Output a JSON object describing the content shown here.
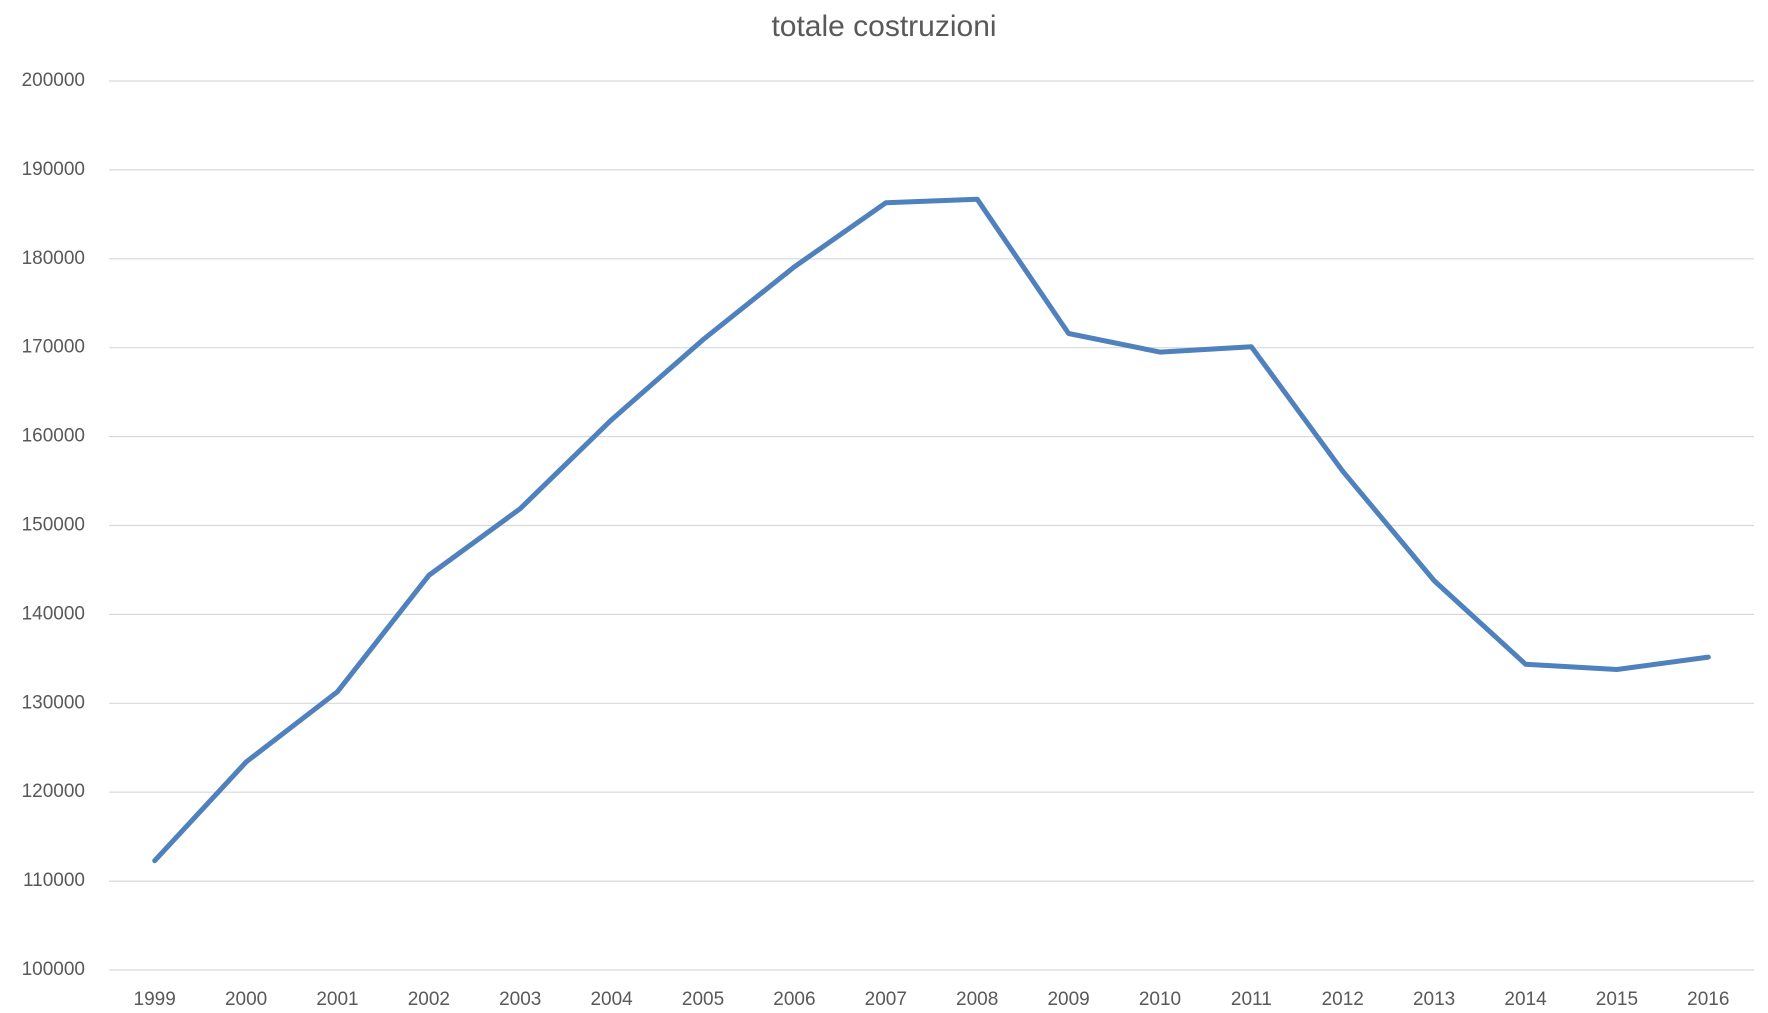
{
  "chart_data": {
    "type": "line",
    "title": "totale costruzioni",
    "categories": [
      "1999",
      "2000",
      "2001",
      "2002",
      "2003",
      "2004",
      "2005",
      "2006",
      "2007",
      "2008",
      "2009",
      "2010",
      "2011",
      "2012",
      "2013",
      "2014",
      "2015",
      "2016"
    ],
    "series": [
      {
        "name": "totale costruzioni",
        "color": "#4f81bd",
        "values": [
          112300,
          123400,
          131300,
          144400,
          151900,
          161900,
          170900,
          179100,
          186300,
          186700,
          171600,
          169500,
          170100,
          156100,
          143800,
          134400,
          133800,
          135200
        ]
      }
    ],
    "ylim": [
      100000,
      200000
    ],
    "yticks": [
      100000,
      110000,
      120000,
      130000,
      140000,
      150000,
      160000,
      170000,
      180000,
      190000,
      200000
    ],
    "grid": true
  }
}
